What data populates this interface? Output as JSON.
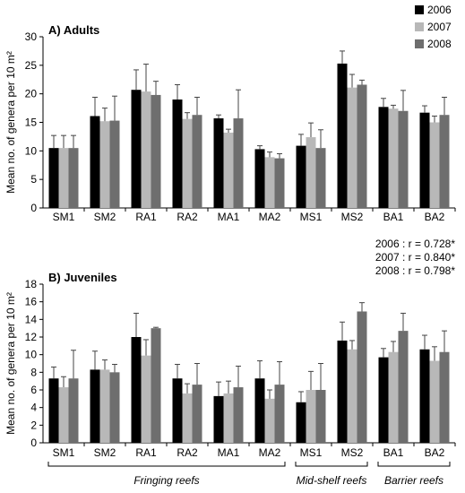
{
  "legend": {
    "entries": [
      {
        "label": "2006",
        "color": "#000000"
      },
      {
        "label": "2007",
        "color": "#b8b8b8"
      },
      {
        "label": "2008",
        "color": "#6e6e6e"
      }
    ],
    "placement": "top-right"
  },
  "correlation_note": [
    "2006 : r = 0.728*",
    "2007 : r = 0.840*",
    "2008 : r = 0.798*"
  ],
  "groups": [
    {
      "label": "Fringing reefs",
      "from": 0,
      "to": 5
    },
    {
      "label": "Mid-shelf reefs",
      "from": 6,
      "to": 7
    },
    {
      "label": "Barrier reefs",
      "from": 8,
      "to": 9
    }
  ],
  "chart_data": [
    {
      "type": "bar",
      "title": "A) Adults",
      "ylabel": "Mean no. of genera per 10 m²",
      "ylim": [
        0,
        30
      ],
      "yticks": [
        0,
        5,
        10,
        15,
        20,
        25,
        30
      ],
      "categories": [
        "SM1",
        "SM2",
        "RA1",
        "RA2",
        "MA1",
        "MA2",
        "MS1",
        "MS2",
        "BA1",
        "BA2"
      ],
      "series": [
        {
          "name": "2006",
          "values": [
            10.5,
            16.1,
            20.7,
            19.0,
            15.7,
            10.3,
            10.9,
            25.3,
            17.7,
            16.7
          ],
          "errors": [
            2.2,
            3.3,
            3.5,
            2.6,
            0.6,
            0.6,
            2.0,
            2.2,
            1.5,
            1.2
          ]
        },
        {
          "name": "2007",
          "values": [
            10.5,
            15.2,
            20.4,
            15.6,
            13.2,
            8.9,
            12.4,
            21.1,
            17.4,
            15.0
          ],
          "errors": [
            2.2,
            2.3,
            4.8,
            1.1,
            0.6,
            0.9,
            2.5,
            2.3,
            0.6,
            1.1
          ]
        },
        {
          "name": "2008",
          "values": [
            10.5,
            15.3,
            19.8,
            16.3,
            15.7,
            8.7,
            10.5,
            21.6,
            17.0,
            16.3
          ],
          "errors": [
            2.2,
            4.3,
            2.4,
            3.1,
            5.0,
            0.8,
            3.2,
            0.8,
            3.6,
            3.1
          ]
        }
      ]
    },
    {
      "type": "bar",
      "title": "B) Juveniles",
      "ylabel": "Mean no. of genera per 10 m²",
      "ylim": [
        0,
        18
      ],
      "yticks": [
        0,
        2,
        4,
        6,
        8,
        10,
        12,
        14,
        16,
        18
      ],
      "categories": [
        "SM1",
        "SM2",
        "RA1",
        "RA2",
        "MA1",
        "MA2",
        "MS1",
        "MS2",
        "BA1",
        "BA2"
      ],
      "series": [
        {
          "name": "2006",
          "values": [
            7.3,
            8.3,
            12.0,
            7.3,
            5.3,
            7.3,
            4.6,
            11.6,
            9.7,
            10.6
          ],
          "errors": [
            1.3,
            2.1,
            2.7,
            1.6,
            1.6,
            2.0,
            1.2,
            2.1,
            1.0,
            1.6
          ]
        },
        {
          "name": "2007",
          "values": [
            6.3,
            8.3,
            9.9,
            5.6,
            5.6,
            5.0,
            6.0,
            10.6,
            10.3,
            9.3
          ],
          "errors": [
            1.2,
            1.1,
            1.8,
            1.1,
            1.4,
            1.0,
            2.1,
            1.0,
            1.2,
            1.6
          ]
        },
        {
          "name": "2008",
          "values": [
            7.3,
            8.0,
            13.0,
            6.6,
            6.3,
            6.6,
            6.0,
            14.9,
            12.7,
            10.3
          ],
          "errors": [
            3.2,
            0.9,
            0.1,
            2.4,
            2.4,
            2.6,
            3.0,
            1.0,
            2.0,
            2.4
          ]
        }
      ]
    }
  ]
}
